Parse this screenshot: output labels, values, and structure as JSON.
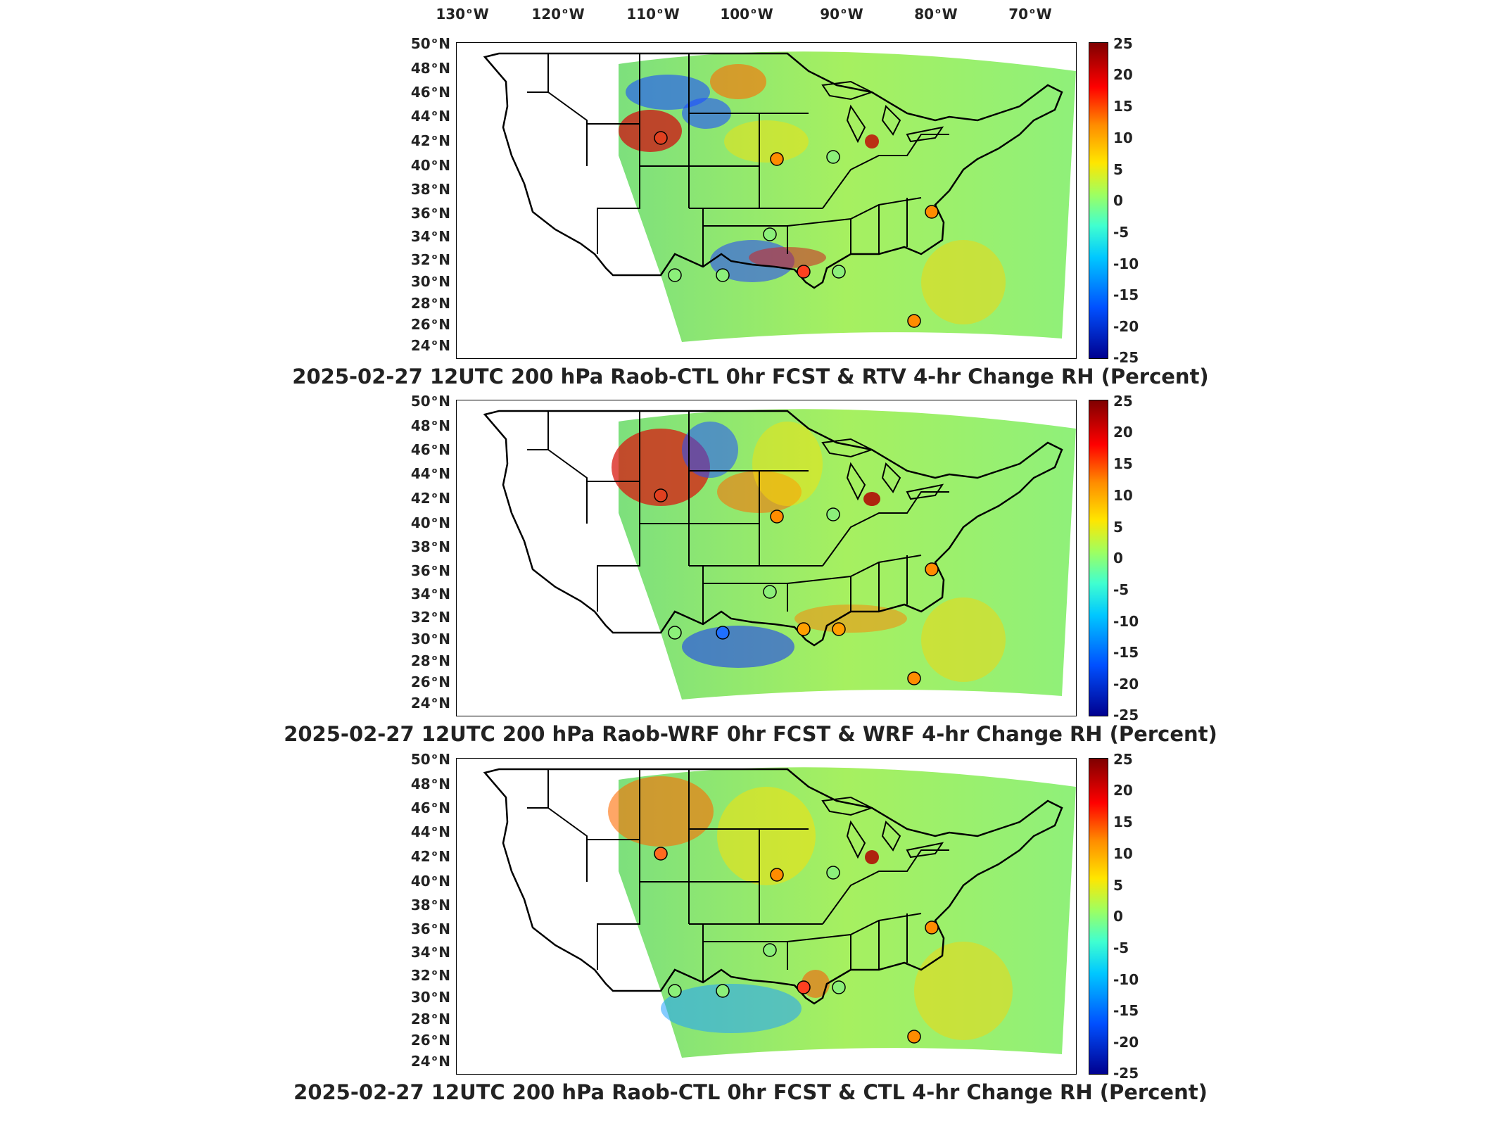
{
  "longitude_labels": [
    {
      "deg": "130",
      "hemi": "W"
    },
    {
      "deg": "120",
      "hemi": "W"
    },
    {
      "deg": "110",
      "hemi": "W"
    },
    {
      "deg": "100",
      "hemi": "W"
    },
    {
      "deg": "90",
      "hemi": "W"
    },
    {
      "deg": "80",
      "hemi": "W"
    },
    {
      "deg": "70",
      "hemi": "W"
    }
  ],
  "latitude_labels": [
    {
      "deg": "50",
      "hemi": "N"
    },
    {
      "deg": "48",
      "hemi": "N"
    },
    {
      "deg": "46",
      "hemi": "N"
    },
    {
      "deg": "44",
      "hemi": "N"
    },
    {
      "deg": "42",
      "hemi": "N"
    },
    {
      "deg": "40",
      "hemi": "N"
    },
    {
      "deg": "38",
      "hemi": "N"
    },
    {
      "deg": "36",
      "hemi": "N"
    },
    {
      "deg": "34",
      "hemi": "N"
    },
    {
      "deg": "32",
      "hemi": "N"
    },
    {
      "deg": "30",
      "hemi": "N"
    },
    {
      "deg": "28",
      "hemi": "N"
    },
    {
      "deg": "26",
      "hemi": "N"
    },
    {
      "deg": "24",
      "hemi": "N"
    }
  ],
  "colorbar_ticks": [
    "25",
    "20",
    "15",
    "10",
    "5",
    "0",
    "-5",
    "-10",
    "-15",
    "-20",
    "-25"
  ],
  "colors": {
    "max": "#7f0000",
    "high": "#ff0000",
    "mid_high": "#ffe600",
    "zero": "#9fff60",
    "mid_low": "#00c8ff",
    "min": "#00008f"
  },
  "panels": [
    {
      "title": "2025-02-27 12UTC 200 hPa Raob-CTL 0hr FCST & RTV 4-hr Change RH (Percent)"
    },
    {
      "title": "2025-02-27 12UTC 200 hPa Raob-WRF 0hr FCST & WRF 4-hr Change RH (Percent)"
    },
    {
      "title": "2025-02-27 12UTC 200 hPa Raob-CTL 0hr FCST & CTL 4-hr Change RH (Percent)"
    }
  ]
}
